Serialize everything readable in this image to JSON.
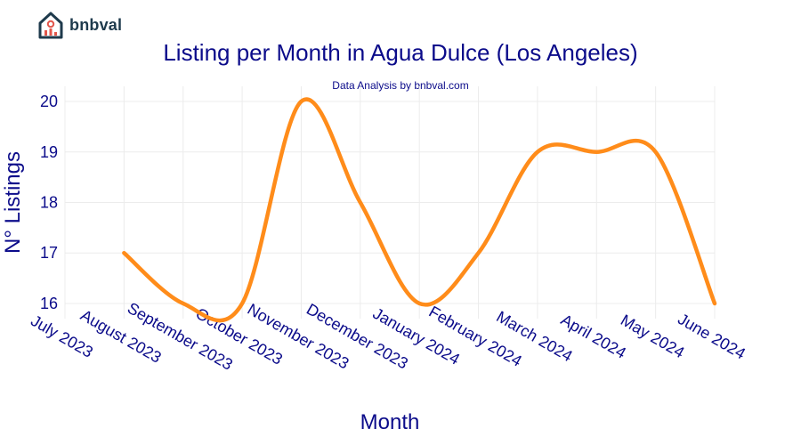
{
  "brand": {
    "name": "bnbval",
    "logo_icon": "house-chart-icon",
    "colors": {
      "dark": "#1e3a4c",
      "accent": "#e2564b"
    }
  },
  "chart_data": {
    "type": "line",
    "title": "Listing per Month in Agua Dulce (Los Angeles)",
    "subtitle": "Data Analysis by bnbval.com",
    "xlabel": "Month",
    "ylabel": "N° Listings",
    "categories": [
      "July 2023",
      "August 2023",
      "September 2023",
      "October 2023",
      "November 2023",
      "December 2023",
      "January 2024",
      "February 2024",
      "March 2024",
      "April 2024",
      "May 2024",
      "June 2024"
    ],
    "series": [
      {
        "values": [
          null,
          17,
          16,
          16,
          20,
          18,
          16,
          17,
          19,
          19,
          19,
          16
        ],
        "color": "#ff8c1a"
      }
    ],
    "ylim": [
      15.7,
      20.3
    ],
    "yticks": [
      16,
      17,
      18,
      19,
      20
    ],
    "grid": true,
    "legend": "none",
    "curve": "smooth"
  }
}
